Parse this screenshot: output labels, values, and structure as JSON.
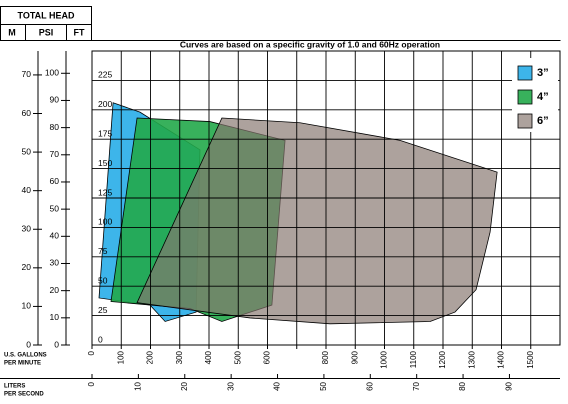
{
  "header": {
    "title": "TOTAL HEAD",
    "columns": [
      "M",
      "PSI",
      "FT"
    ]
  },
  "chart_data": {
    "type": "area",
    "title": "Curves are based on a specific gravity of 1.0 and 60Hz operation",
    "xlabel": [
      "U.S. GALLONS",
      "PER MINUTE"
    ],
    "x2label": [
      "LITERS",
      "PER SECOND"
    ],
    "xlim": [
      0,
      1600
    ],
    "xticks": [
      0,
      100,
      200,
      300,
      400,
      500,
      600,
      {
        "value": 700,
        "label": null
      },
      800,
      900,
      1000,
      1100,
      1200,
      1300,
      1400,
      1500
    ],
    "x2lim": [
      0,
      100.9
    ],
    "x2ticks": [
      0,
      10,
      20,
      30,
      40,
      50,
      60,
      70,
      80,
      90
    ],
    "ylim": [
      0,
      250
    ],
    "yticks": [
      0,
      25,
      50,
      75,
      100,
      125,
      150,
      175,
      200,
      225
    ],
    "psi_lim": [
      0,
      108.2
    ],
    "psi_ticks": [
      0,
      10,
      20,
      30,
      40,
      50,
      60,
      70,
      80,
      90,
      100
    ],
    "m_lim": [
      0,
      76.2
    ],
    "m_ticks": [
      0,
      10,
      20,
      30,
      40,
      50,
      60,
      70
    ],
    "grid": true,
    "legend": "upper right",
    "series": [
      {
        "name": "3”",
        "color": "#3db5ea",
        "opacity": 1,
        "x": [
          72,
          164,
          369,
          356,
          250,
          198,
          24
        ],
        "values": [
          206,
          198,
          166,
          28,
          20,
          34,
          40
        ]
      },
      {
        "name": "4”",
        "color": "#22a84a",
        "opacity": 0.9,
        "x": [
          154,
          403,
          660,
          615,
          444,
          335,
          65
        ],
        "values": [
          193,
          190,
          174,
          34,
          20,
          31,
          37
        ]
      },
      {
        "name": "6”",
        "color": "#86766e",
        "opacity": 0.68,
        "x": [
          444,
          711,
          1053,
          1385,
          1361,
          1313,
          1241,
          1156,
          814,
          540,
          154
        ],
        "values": [
          193,
          189,
          174,
          147,
          96,
          47,
          28,
          20,
          18,
          23,
          36
        ]
      }
    ]
  }
}
